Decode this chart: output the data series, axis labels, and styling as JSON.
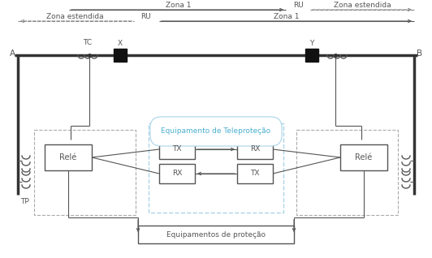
{
  "bg_color": "#ffffff",
  "line_color": "#555555",
  "dashed_line_color": "#888888",
  "teleprotection_box_color": "#aad4e8",
  "teleprotection_text_color": "#4ab0d0",
  "zone1_top_label": "Zona 1",
  "zone1_top_ru": "RU",
  "zona_estendida_top": "Zona estendida",
  "zona_estendida_bottom": "Zona estendida",
  "zone1_bottom_label": "Zona 1",
  "zone1_bottom_ru": "RU",
  "label_A": "A",
  "label_B": "B",
  "label_TC": "TC",
  "label_X": "X",
  "label_Y": "Y",
  "label_TP": "TP",
  "label_rele_left": "Relé",
  "label_rele_right": "Relé",
  "label_TX_left": "TX",
  "label_RX_left": "RX",
  "label_RX_right": "RX",
  "label_TX_right": "TX",
  "label_teleprotection": "Equipamento de Teleproteção",
  "label_equipamentos": "Equipamentos de proteção"
}
